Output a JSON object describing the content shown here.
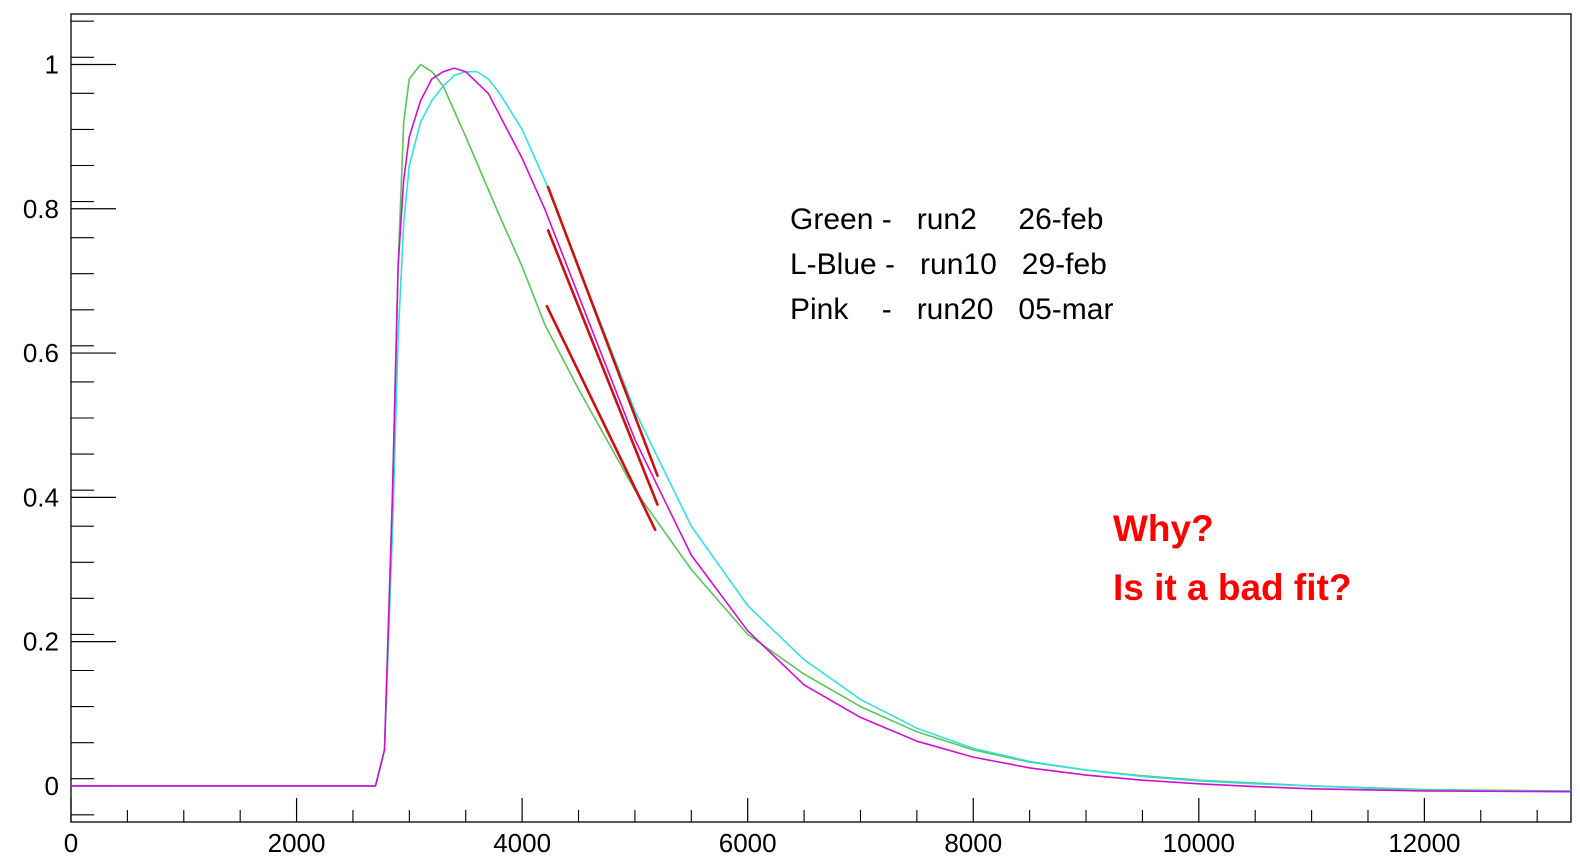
{
  "chart_data": {
    "type": "line",
    "title": "",
    "xlabel": "",
    "ylabel": "",
    "xlim": [
      0,
      13300
    ],
    "ylim": [
      -0.05,
      1.07
    ],
    "grid": false,
    "x_ticks": [
      0,
      2000,
      4000,
      6000,
      8000,
      10000,
      12000
    ],
    "x_tick_labels": [
      "0",
      "2000",
      "4000",
      "6000",
      "8000",
      "10000",
      "12000"
    ],
    "y_ticks": [
      0,
      0.2,
      0.4,
      0.6,
      0.8,
      1
    ],
    "y_tick_labels": [
      "0",
      "0.2",
      "0.4",
      "0.6",
      "0.8",
      "1"
    ],
    "series": [
      {
        "color": "#5cc35c",
        "x": [
          0,
          2000,
          2700,
          2780,
          2850,
          2900,
          2950,
          3000,
          3100,
          3200,
          3300,
          3500,
          3800,
          4000,
          4200,
          4500,
          5000,
          5500,
          6000,
          6500,
          7000,
          7500,
          8000,
          8500,
          9000,
          9500,
          10000,
          10500,
          11000,
          12000,
          13300
        ],
        "y": [
          0,
          0,
          0,
          0.05,
          0.4,
          0.72,
          0.92,
          0.98,
          1.0,
          0.99,
          0.97,
          0.9,
          0.79,
          0.72,
          0.64,
          0.55,
          0.41,
          0.3,
          0.21,
          0.155,
          0.11,
          0.075,
          0.05,
          0.033,
          0.022,
          0.014,
          0.008,
          0.004,
          0.0,
          -0.005,
          -0.007
        ]
      },
      {
        "color": "#33e0e0",
        "x": [
          0,
          2000,
          2700,
          2780,
          2850,
          2900,
          2950,
          3000,
          3100,
          3200,
          3300,
          3400,
          3500,
          3600,
          3700,
          3800,
          4000,
          4200,
          4500,
          5000,
          5500,
          6000,
          6500,
          7000,
          7500,
          8000,
          8500,
          9000,
          9500,
          10000,
          10500,
          11000,
          12000,
          13300
        ],
        "y": [
          0,
          0,
          0,
          0.05,
          0.35,
          0.62,
          0.78,
          0.86,
          0.92,
          0.95,
          0.97,
          0.985,
          0.99,
          0.99,
          0.98,
          0.96,
          0.91,
          0.84,
          0.72,
          0.52,
          0.36,
          0.25,
          0.175,
          0.12,
          0.08,
          0.052,
          0.034,
          0.022,
          0.013,
          0.007,
          0.003,
          0.0,
          -0.006,
          -0.007
        ]
      },
      {
        "color": "#d10fd1",
        "x": [
          0,
          2000,
          2700,
          2780,
          2850,
          2900,
          2950,
          3000,
          3100,
          3200,
          3300,
          3400,
          3500,
          3700,
          3800,
          4000,
          4200,
          4500,
          5000,
          5500,
          6000,
          6500,
          7000,
          7500,
          8000,
          8500,
          9000,
          9500,
          10000,
          10500,
          11000,
          12000,
          13300
        ],
        "y": [
          0,
          0,
          0,
          0.05,
          0.4,
          0.72,
          0.84,
          0.9,
          0.95,
          0.98,
          0.99,
          0.995,
          0.99,
          0.96,
          0.93,
          0.87,
          0.8,
          0.68,
          0.48,
          0.32,
          0.215,
          0.14,
          0.095,
          0.062,
          0.04,
          0.025,
          0.015,
          0.008,
          0.003,
          -0.001,
          -0.004,
          -0.007,
          -0.008
        ]
      }
    ],
    "fits": [
      {
        "color": "#cc1010",
        "x": [
          4230,
          5200
        ],
        "y": [
          0.83,
          0.43
        ]
      },
      {
        "color": "#cc1010",
        "x": [
          4230,
          5200
        ],
        "y": [
          0.77,
          0.39
        ]
      },
      {
        "color": "#cc1010",
        "x": [
          4220,
          5180
        ],
        "y": [
          0.665,
          0.355
        ]
      }
    ],
    "legend_lines": [
      "Green -   run2     26-feb",
      "L-Blue -   run10   29-feb",
      "Pink    -   run20   05-mar"
    ],
    "annotations": [
      "Why?",
      "Is it a bad fit?"
    ]
  }
}
